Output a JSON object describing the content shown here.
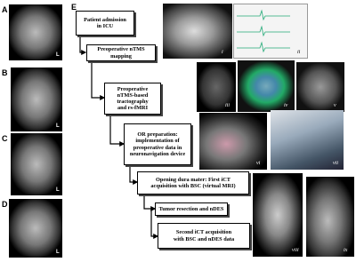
{
  "left_panels": [
    {
      "label": "A",
      "side": "L"
    },
    {
      "label": "B",
      "side": "L"
    },
    {
      "label": "C",
      "side": "L"
    },
    {
      "label": "D",
      "side": "L"
    }
  ],
  "flowchart": {
    "label": "E",
    "steps": [
      [
        "Patient admission",
        "in ICU"
      ],
      [
        "Preoperative nTMS",
        "mapping"
      ],
      [
        "Preoperative",
        "nTMS-based tractography",
        "and rs-fMRI"
      ],
      [
        "OR preparation:",
        "implementation of",
        "preoperative data in",
        "neuronavigation device"
      ],
      [
        "Opening dura mater: First iCT",
        "acquisition with BSC (virtual MRI)"
      ],
      [
        "Tumor resection and nDES"
      ],
      [
        "Second iCT acquisition",
        "with BSC and nDES data"
      ]
    ]
  },
  "images": [
    "i",
    "ii",
    "iii",
    "iv",
    "v",
    "vi",
    "vii",
    "viii",
    "ix"
  ]
}
